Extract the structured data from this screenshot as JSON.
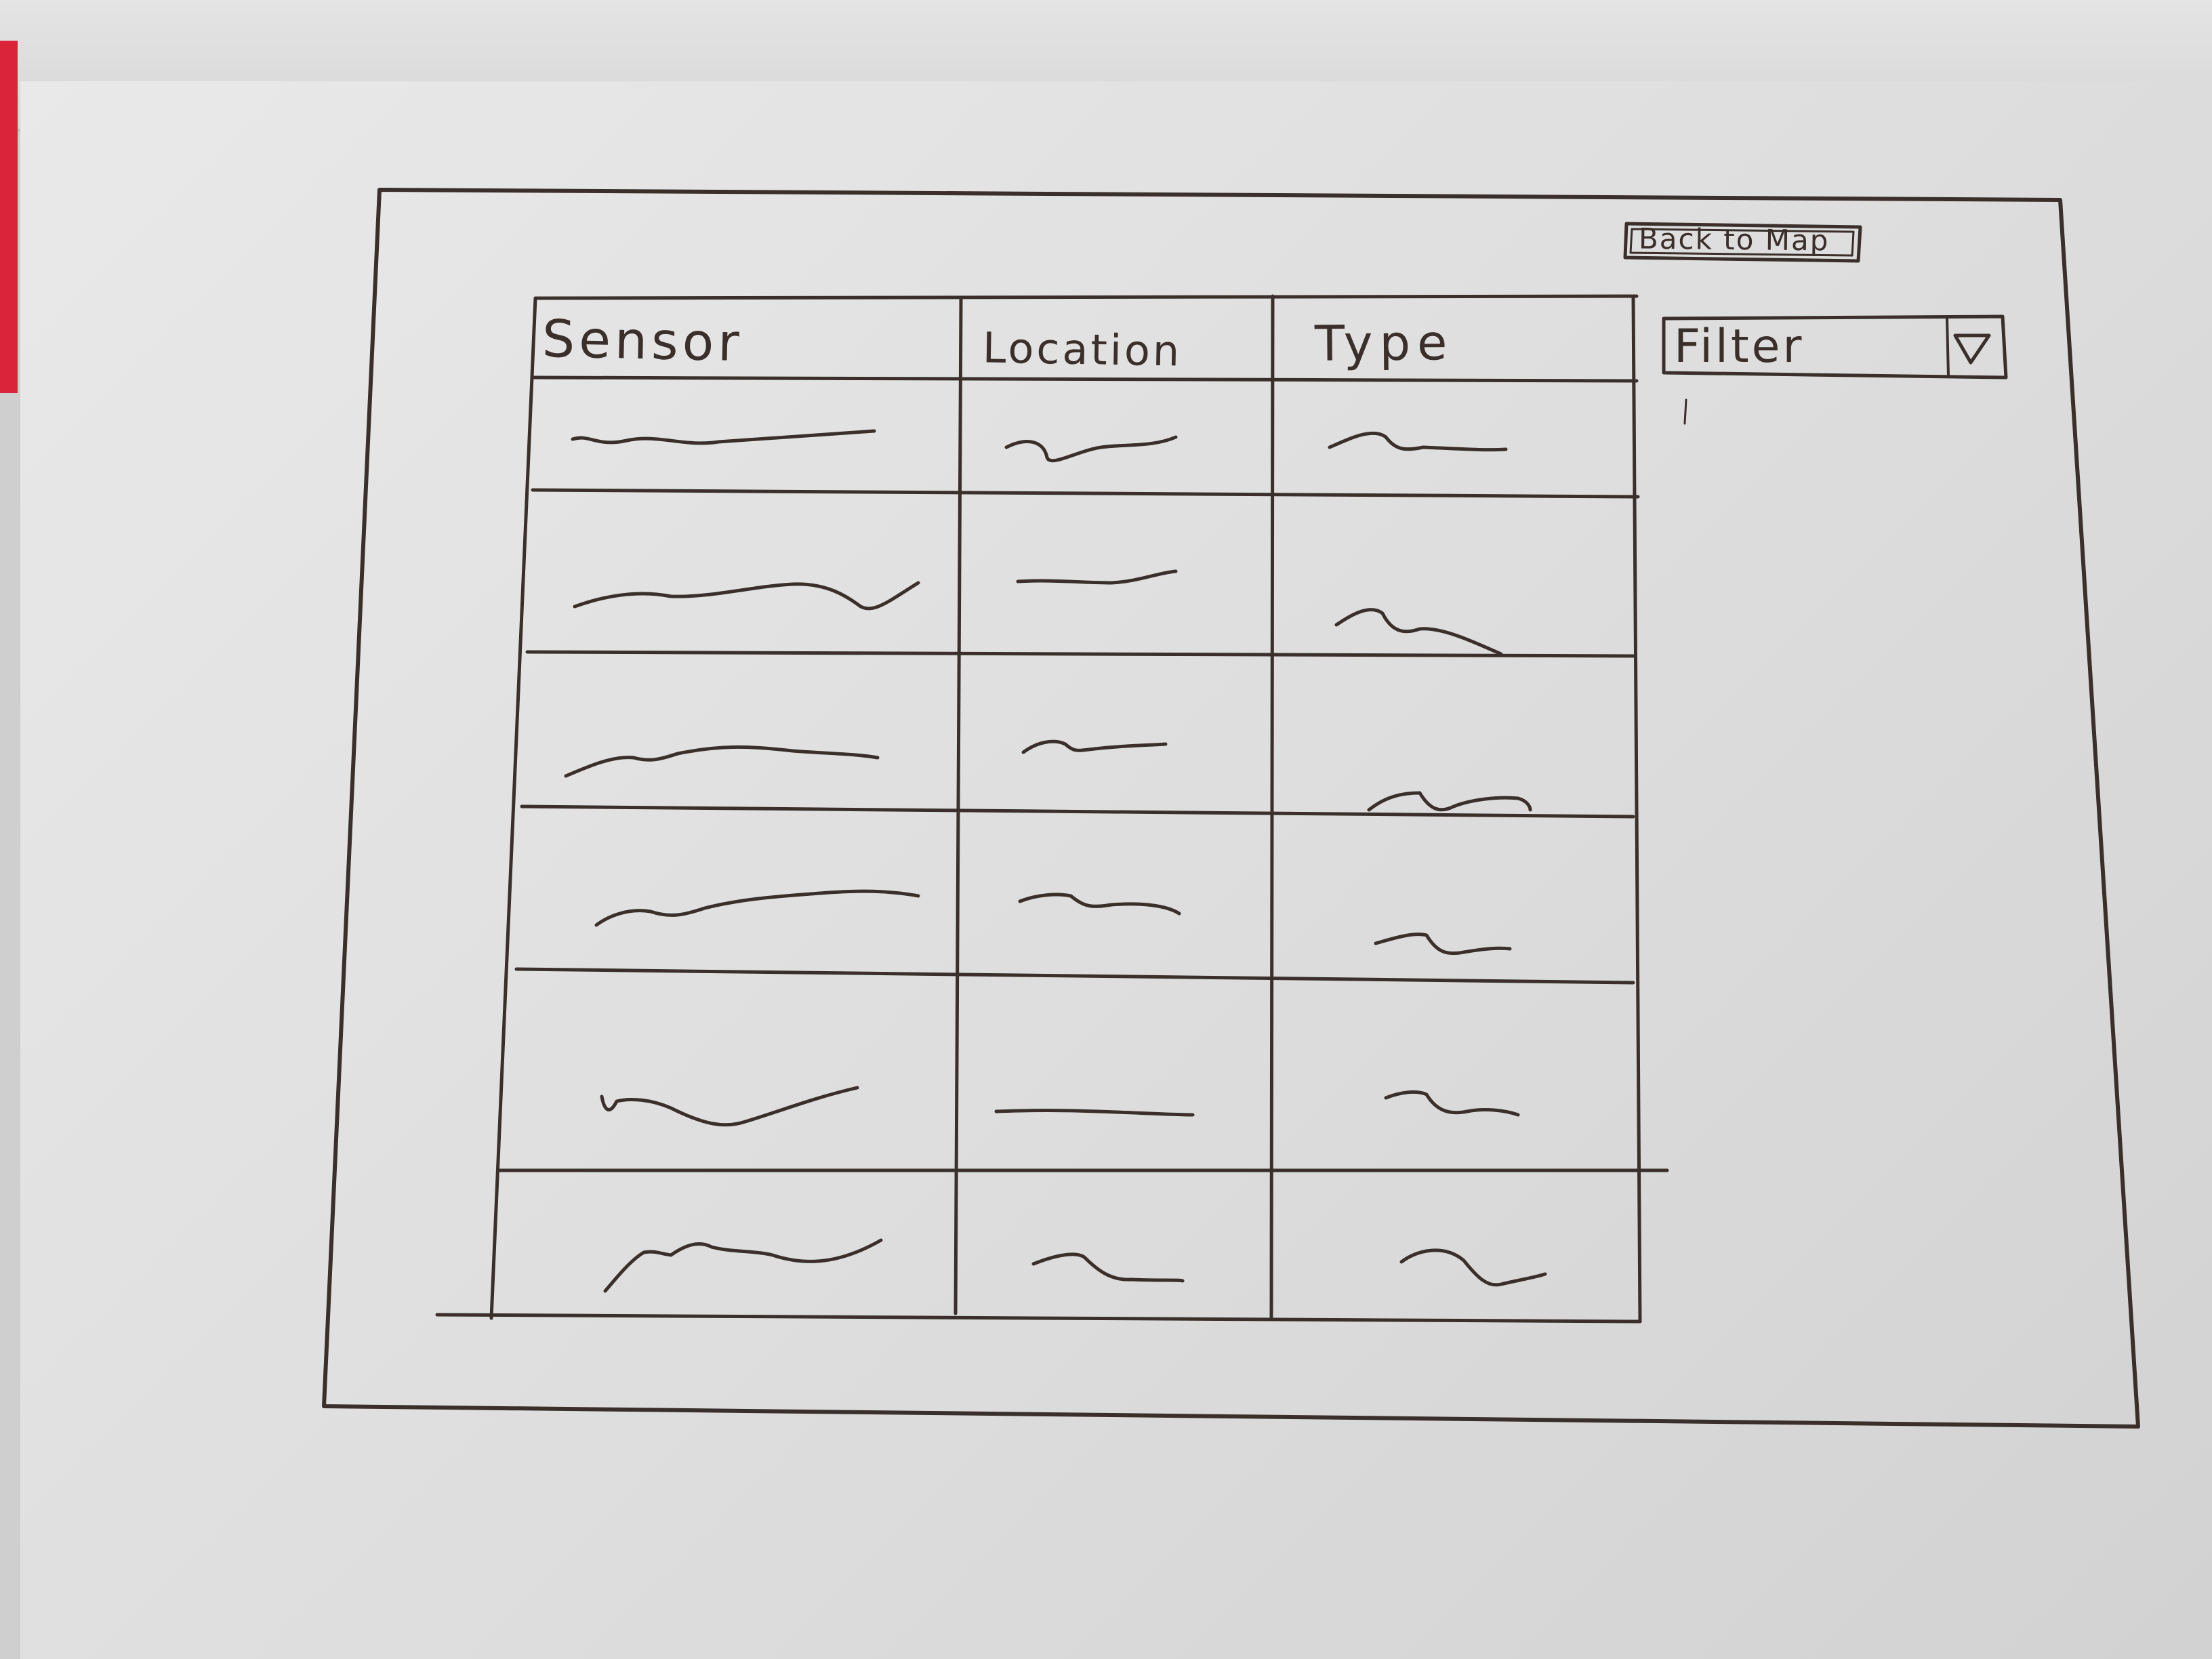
{
  "header": {
    "back_button_label": "Back to Map"
  },
  "filter": {
    "label": "Filter",
    "dropdown_icon": "triangle-down-icon"
  },
  "table": {
    "columns": [
      "Sensor",
      "Location",
      "Type"
    ],
    "row_count": 6,
    "cell_content": "squiggle-placeholder"
  },
  "colors": {
    "ink": "#3a2f2a",
    "paper": "#e2e2e2"
  }
}
